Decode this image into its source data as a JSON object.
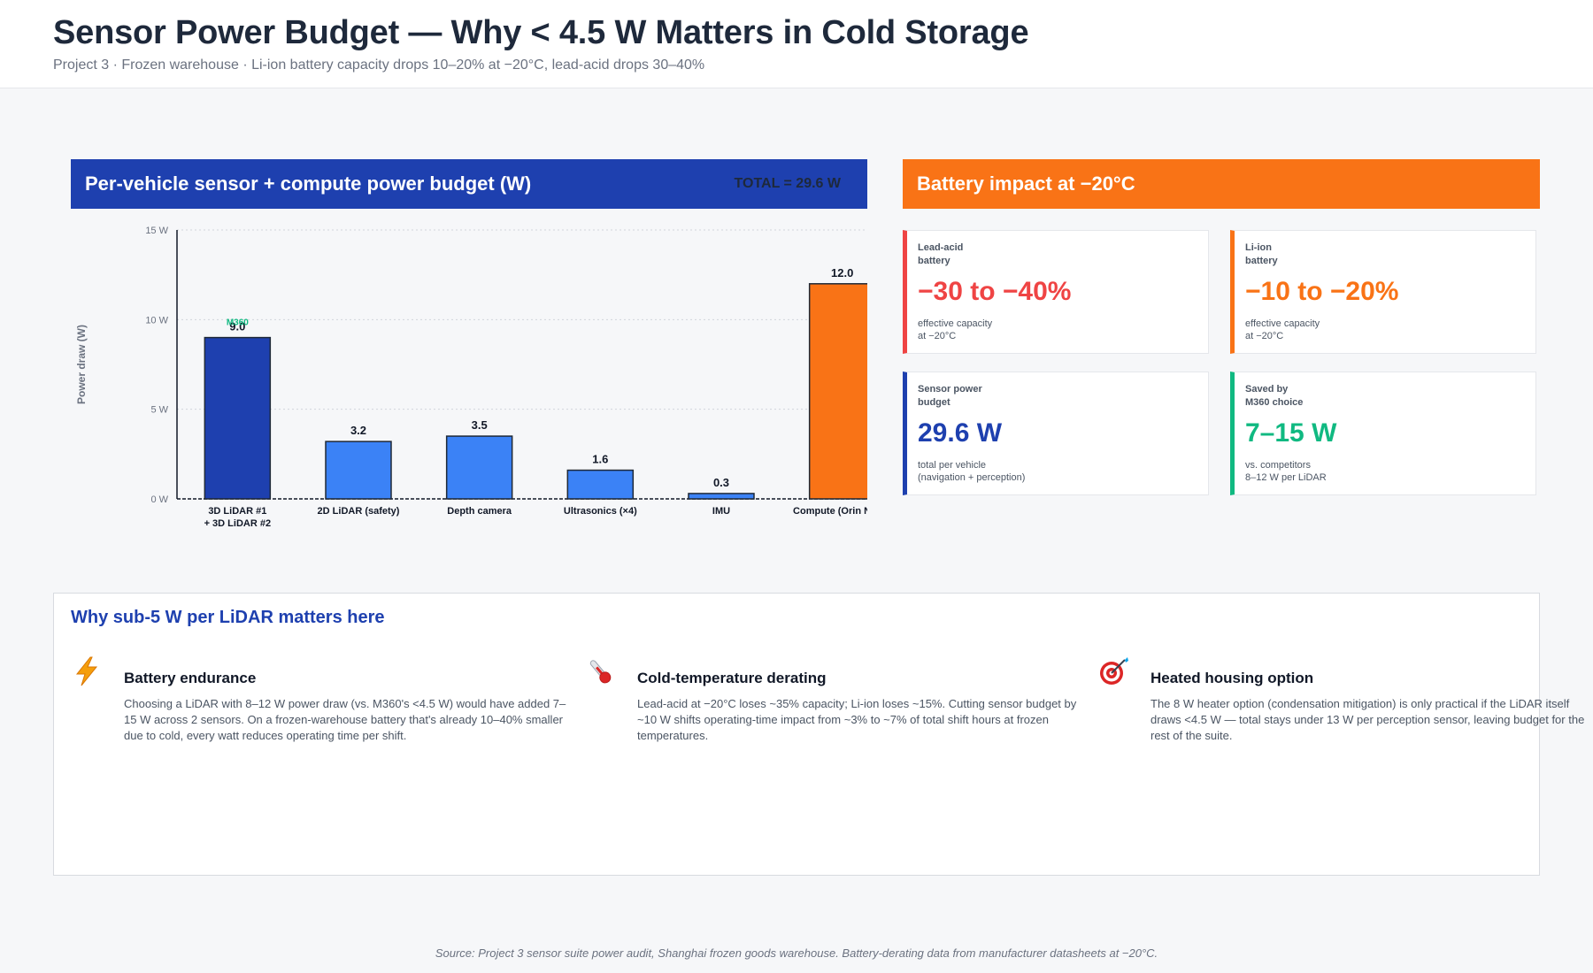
{
  "header": {
    "title": "Sensor Power Budget — Why < 4.5 W Matters in Cold Storage",
    "subtitle": "Project 3 · Frozen warehouse · Li-ion battery capacity drops 10–20% at −20°C, lead-acid drops 30–40%"
  },
  "chart_panel": {
    "title": "Per-vehicle sensor + compute power budget (W)",
    "total_label": "TOTAL = 29.6 W",
    "header_color": "#1e40af"
  },
  "chart_data": {
    "type": "bar",
    "title": "Per-vehicle sensor + compute power budget (W)",
    "xlabel": "",
    "ylabel": "Power draw (W)",
    "ylim": [
      0,
      15
    ],
    "yticks": [
      0,
      5,
      10,
      15
    ],
    "ytick_labels": [
      "0 W",
      "5 W",
      "10 W",
      "15 W"
    ],
    "grid": true,
    "categories": [
      "3D LiDAR #1\n+ 3D LiDAR #2",
      "2D LiDAR (safety)",
      "Depth camera",
      "Ultrasonics (×4)",
      "IMU",
      "Compute (Orin Nano)"
    ],
    "values": [
      9.0,
      3.2,
      3.5,
      1.6,
      0.3,
      12.0
    ],
    "value_labels": [
      "9.0",
      "3.2",
      "3.5",
      "1.6",
      "0.3",
      "12.0"
    ],
    "colors": [
      "#1e40af",
      "#3b82f6",
      "#3b82f6",
      "#3b82f6",
      "#3b82f6",
      "#f97316"
    ],
    "annotations": [
      {
        "category_index": 0,
        "text": "M360",
        "color": "#10b981"
      }
    ]
  },
  "battery_panel": {
    "title": "Battery impact at −20°C",
    "header_color": "#f97316",
    "cards": [
      {
        "label": "Lead-acid\nbattery",
        "value": "−30 to −40%",
        "note": "effective capacity\nat −20°C",
        "color": "#ef4444"
      },
      {
        "label": "Li-ion\nbattery",
        "value": "−10 to −20%",
        "note": "effective capacity\nat −20°C",
        "color": "#f97316"
      },
      {
        "label": "Sensor power\nbudget",
        "value": "29.6 W",
        "note": "total per vehicle\n(navigation + perception)",
        "color": "#1e40af"
      },
      {
        "label": "Saved by\nM360 choice",
        "value": "7–15 W",
        "note": "vs. competitors\n8–12 W per LiDAR",
        "color": "#10b981"
      }
    ]
  },
  "why": {
    "title": "Why sub-5 W per LiDAR matters here",
    "items": [
      {
        "icon": "lightning-icon",
        "title": "Battery endurance",
        "body": "Choosing a LiDAR with 8–12 W power draw (vs. M360's <4.5 W) would have added 7–15 W across 2 sensors. On a frozen-warehouse battery that's already 10–40% smaller due to cold, every watt reduces operating time per shift."
      },
      {
        "icon": "thermometer-icon",
        "title": "Cold-temperature derating",
        "body": "Lead-acid at −20°C loses ~35% capacity; Li-ion loses ~15%. Cutting sensor budget by ~10 W shifts operating-time impact from ~3% to ~7% of total shift hours at frozen temperatures."
      },
      {
        "icon": "target-icon",
        "title": "Heated housing option",
        "body": "The 8 W heater option (condensation mitigation) is only practical if the LiDAR itself draws <4.5 W — total stays under 13 W per perception sensor, leaving budget for the rest of the suite."
      }
    ]
  },
  "source": "Source: Project 3 sensor suite power audit, Shanghai frozen goods warehouse. Battery-derating data from manufacturer datasheets at −20°C."
}
